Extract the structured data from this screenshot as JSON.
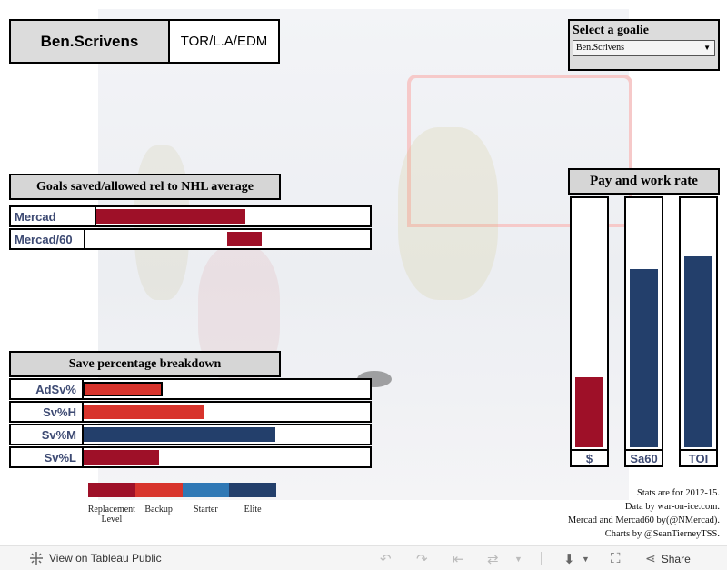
{
  "goalie": {
    "name": "Ben.Scrivens",
    "teams": "TOR/L.A/EDM"
  },
  "select": {
    "title": "Select  a  goalie",
    "value": "Ben.Scrivens",
    "arrow": "▼"
  },
  "goals_section": {
    "title": "Goals  saved/allowed  rel  to  NHL  average",
    "rows": [
      {
        "label": "Mercad",
        "start": 0.0,
        "end": 0.55,
        "color": "#9e1028"
      },
      {
        "label": "Mercad/60",
        "start": 0.46,
        "end": 0.58,
        "color": "#9e1028"
      }
    ]
  },
  "save_section": {
    "title": "Save  percentage  breakdown",
    "rows": [
      {
        "label": "AdSv%",
        "value": 0.275,
        "color": "#d8342c",
        "outlined": true
      },
      {
        "label": "Sv%H",
        "value": 0.42,
        "color": "#d8342c",
        "outlined": false
      },
      {
        "label": "Sv%M",
        "value": 0.67,
        "color": "#233f6b",
        "outlined": false
      },
      {
        "label": "Sv%L",
        "value": 0.265,
        "color": "#9e1028",
        "outlined": false
      }
    ]
  },
  "pay_section": {
    "title": "Pay  and  work  rate",
    "bars": [
      {
        "label": "$",
        "value": 0.28,
        "color": "#9e1028"
      },
      {
        "label": "Sa60",
        "value": 0.71,
        "color": "#233f6b"
      },
      {
        "label": "TOI",
        "value": 0.76,
        "color": "#233f6b"
      }
    ]
  },
  "legend": {
    "items": [
      {
        "label": "Replacement\nLevel",
        "color": "#9e1028"
      },
      {
        "label": "Backup",
        "color": "#d8342c"
      },
      {
        "label": "Starter",
        "color": "#2f78b5"
      },
      {
        "label": "Elite",
        "color": "#233f6b"
      }
    ]
  },
  "credits": {
    "lines": [
      "Stats are for 2012-15.",
      "Data by war-on-ice.com.",
      "Mercad and Mercad60 by(@NMercad).",
      "Charts by @SeanTierneyTSS."
    ]
  },
  "footer": {
    "view_label": "View on Tableau Public",
    "share_label": "Share"
  }
}
